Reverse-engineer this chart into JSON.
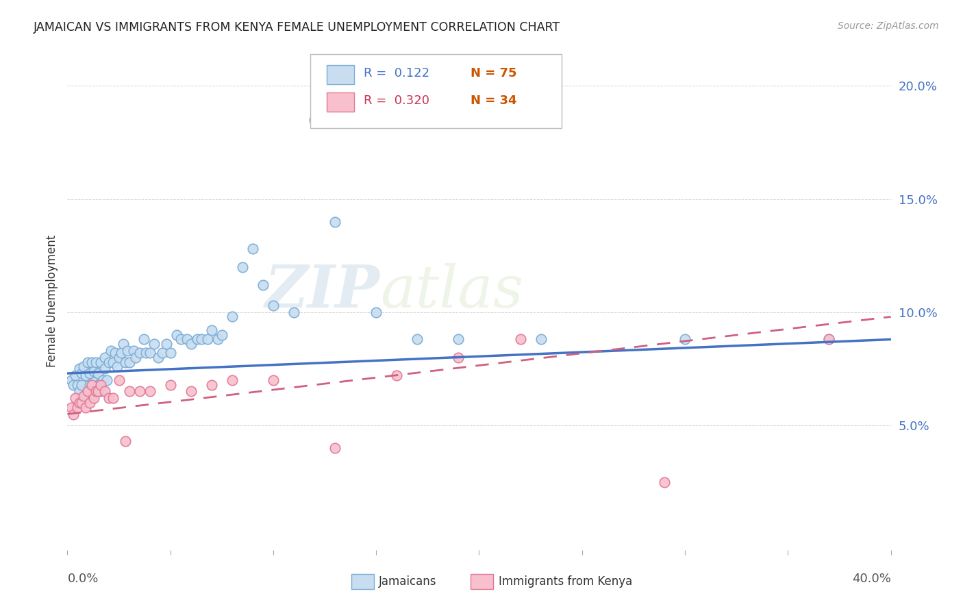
{
  "title": "JAMAICAN VS IMMIGRANTS FROM KENYA FEMALE UNEMPLOYMENT CORRELATION CHART",
  "source": "Source: ZipAtlas.com",
  "ylabel": "Female Unemployment",
  "yticks": [
    0.05,
    0.1,
    0.15,
    0.2
  ],
  "ytick_labels": [
    "5.0%",
    "10.0%",
    "15.0%",
    "20.0%"
  ],
  "xlim": [
    0.0,
    0.4
  ],
  "ylim": [
    -0.005,
    0.215
  ],
  "jamaican_color": "#c8ddf0",
  "jamaican_edge": "#7aadd8",
  "kenya_color": "#f8c0cc",
  "kenya_edge": "#e07898",
  "trend_jamaican_color": "#4472c4",
  "trend_kenya_color": "#d06080",
  "watermark_zip": "ZIP",
  "watermark_atlas": "atlas",
  "jamaicans_x": [
    0.002,
    0.003,
    0.004,
    0.005,
    0.006,
    0.006,
    0.007,
    0.007,
    0.008,
    0.008,
    0.009,
    0.01,
    0.01,
    0.011,
    0.011,
    0.012,
    0.012,
    0.013,
    0.013,
    0.014,
    0.014,
    0.015,
    0.015,
    0.016,
    0.016,
    0.017,
    0.018,
    0.018,
    0.019,
    0.02,
    0.021,
    0.022,
    0.023,
    0.024,
    0.025,
    0.026,
    0.027,
    0.028,
    0.029,
    0.03,
    0.032,
    0.033,
    0.035,
    0.037,
    0.038,
    0.04,
    0.042,
    0.044,
    0.046,
    0.048,
    0.05,
    0.053,
    0.055,
    0.058,
    0.06,
    0.063,
    0.065,
    0.068,
    0.07,
    0.073,
    0.075,
    0.08,
    0.085,
    0.09,
    0.095,
    0.1,
    0.11,
    0.12,
    0.13,
    0.15,
    0.17,
    0.19,
    0.23,
    0.3,
    0.37
  ],
  "jamaicans_y": [
    0.07,
    0.068,
    0.072,
    0.068,
    0.075,
    0.065,
    0.073,
    0.068,
    0.076,
    0.062,
    0.072,
    0.078,
    0.065,
    0.073,
    0.068,
    0.078,
    0.063,
    0.074,
    0.069,
    0.078,
    0.065,
    0.073,
    0.068,
    0.078,
    0.065,
    0.07,
    0.08,
    0.075,
    0.07,
    0.078,
    0.083,
    0.078,
    0.082,
    0.076,
    0.08,
    0.082,
    0.086,
    0.078,
    0.083,
    0.078,
    0.083,
    0.08,
    0.082,
    0.088,
    0.082,
    0.082,
    0.086,
    0.08,
    0.082,
    0.086,
    0.082,
    0.09,
    0.088,
    0.088,
    0.086,
    0.088,
    0.088,
    0.088,
    0.092,
    0.088,
    0.09,
    0.098,
    0.12,
    0.128,
    0.112,
    0.103,
    0.1,
    0.185,
    0.14,
    0.1,
    0.088,
    0.088,
    0.088,
    0.088,
    0.088
  ],
  "kenya_x": [
    0.002,
    0.003,
    0.004,
    0.005,
    0.006,
    0.007,
    0.008,
    0.009,
    0.01,
    0.011,
    0.012,
    0.013,
    0.014,
    0.015,
    0.016,
    0.018,
    0.02,
    0.022,
    0.025,
    0.028,
    0.03,
    0.035,
    0.04,
    0.05,
    0.06,
    0.07,
    0.08,
    0.1,
    0.13,
    0.16,
    0.19,
    0.22,
    0.29,
    0.37
  ],
  "kenya_y": [
    0.058,
    0.055,
    0.062,
    0.058,
    0.06,
    0.06,
    0.063,
    0.058,
    0.065,
    0.06,
    0.068,
    0.062,
    0.065,
    0.065,
    0.068,
    0.065,
    0.062,
    0.062,
    0.07,
    0.043,
    0.065,
    0.065,
    0.065,
    0.068,
    0.065,
    0.068,
    0.07,
    0.07,
    0.04,
    0.072,
    0.08,
    0.088,
    0.025,
    0.088
  ],
  "jamaican_trend_x0": 0.0,
  "jamaican_trend_y0": 0.073,
  "jamaican_trend_x1": 0.4,
  "jamaican_trend_y1": 0.088,
  "kenya_trend_x0": 0.0,
  "kenya_trend_y0": 0.055,
  "kenya_trend_x1": 0.4,
  "kenya_trend_y1": 0.098
}
